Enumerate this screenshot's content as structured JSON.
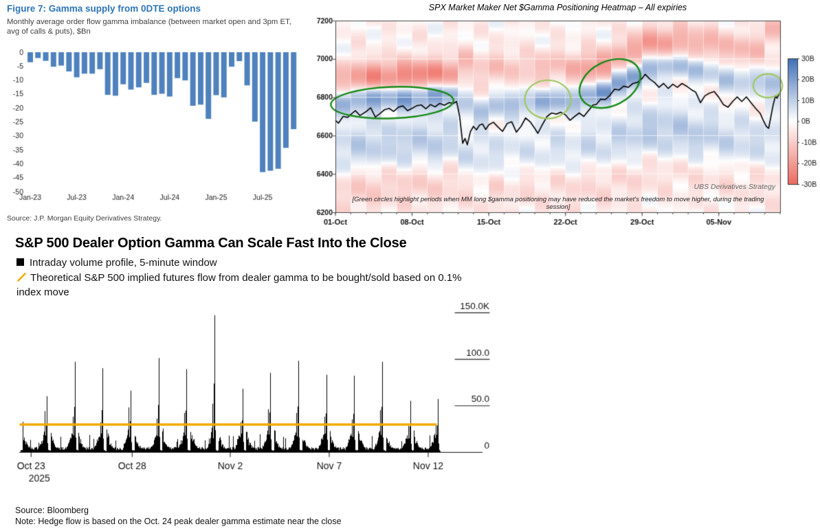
{
  "chart_data": [
    {
      "id": "figure7-gamma-bars",
      "type": "bar",
      "title": "Figure 7: Gamma supply from 0DTE options",
      "subtitle": "Monthly average order flow gamma imbalance (between market open and 3pm ET, avg of calls & puts), $Bn",
      "source": "Source: J.P. Morgan Equity Derivatives Strategy.",
      "title_color": "#2e75b6",
      "bar_color": "#4e81bd",
      "ylim": [
        -50,
        0
      ],
      "y_ticks": [
        0,
        -5,
        -10,
        -15,
        -20,
        -25,
        -30,
        -35,
        -40,
        -45,
        -50
      ],
      "x_tick_labels": [
        "Jan-23",
        "Jul-23",
        "Jan-24",
        "Jul-24",
        "Jan-25",
        "Jul-25"
      ],
      "x_tick_indices": [
        0,
        6,
        12,
        18,
        24,
        30
      ],
      "categories": [
        "Jan-23",
        "Feb-23",
        "Mar-23",
        "Apr-23",
        "May-23",
        "Jun-23",
        "Jul-23",
        "Aug-23",
        "Sep-23",
        "Oct-23",
        "Nov-23",
        "Dec-23",
        "Jan-24",
        "Feb-24",
        "Mar-24",
        "Apr-24",
        "May-24",
        "Jun-24",
        "Jul-24",
        "Aug-24",
        "Sep-24",
        "Oct-24",
        "Nov-24",
        "Dec-24",
        "Jan-25",
        "Feb-25",
        "Mar-25",
        "Apr-25",
        "May-25",
        "Jun-25",
        "Jul-25",
        "Aug-25",
        "Sep-25",
        "Oct-25",
        "Nov-25"
      ],
      "values": [
        -3.6,
        -2.1,
        -3.1,
        -5.2,
        -4.8,
        -6.9,
        -9.0,
        -7.7,
        -7.7,
        -6.1,
        -15.3,
        -15.6,
        -11.5,
        -13.4,
        -12.6,
        -11.0,
        -15.3,
        -14.9,
        -15.9,
        -9.3,
        -10.1,
        -19.2,
        -18.8,
        -23.9,
        -15.4,
        -16.2,
        -5.2,
        -3.2,
        -11.9,
        -24.9,
        -43.0,
        -42.5,
        -41.8,
        -34.3,
        -27.6
      ]
    },
    {
      "id": "spx-mm-gamma-heatmap",
      "type": "heatmap",
      "title": "SPX Market Maker Net $Gamma Positioning Heatmap – All expiries",
      "watermark": "UBS Derivatives Strategy",
      "note": "[Green circles highlight periods when MM long $gamma positioning may have reduced the market's freedom to move higher, during the trading session]",
      "ylim": [
        6200,
        7200
      ],
      "y_ticks": [
        7200,
        7000,
        6800,
        6600,
        6400,
        6200
      ],
      "x_tick_labels": [
        "01-Oct",
        "08-Oct",
        "15-Oct",
        "22-Oct",
        "29-Oct",
        "05-Nov"
      ],
      "x_tick_days": [
        0,
        5,
        10,
        15,
        20,
        25
      ],
      "n_days": 29,
      "colorbar": {
        "ticks": [
          "30B",
          "20B",
          "10B",
          "0B",
          "-10B",
          "-20B",
          "-30B"
        ],
        "vmax": 30,
        "vmin": -30,
        "max_color": "#3f6fb7",
        "min_color": "#ee6a60"
      },
      "price_line": [
        [
          0,
          6680
        ],
        [
          0.2,
          6665
        ],
        [
          0.5,
          6700
        ],
        [
          0.8,
          6695
        ],
        [
          1,
          6710
        ],
        [
          1.3,
          6730
        ],
        [
          1.6,
          6705
        ],
        [
          2,
          6725
        ],
        [
          2.3,
          6745
        ],
        [
          2.6,
          6697
        ],
        [
          2.9,
          6715
        ],
        [
          3.2,
          6735
        ],
        [
          3.5,
          6742
        ],
        [
          3.8,
          6726
        ],
        [
          4.1,
          6748
        ],
        [
          4.4,
          6755
        ],
        [
          4.7,
          6730
        ],
        [
          5,
          6742
        ],
        [
          5.3,
          6756
        ],
        [
          5.6,
          6760
        ],
        [
          5.9,
          6740
        ],
        [
          6.2,
          6762
        ],
        [
          6.5,
          6750
        ],
        [
          6.8,
          6768
        ],
        [
          7.1,
          6758
        ],
        [
          7.4,
          6772
        ],
        [
          7.7,
          6768
        ],
        [
          7.9,
          6778
        ],
        [
          8.1,
          6700
        ],
        [
          8.3,
          6560
        ],
        [
          8.45,
          6585
        ],
        [
          8.6,
          6552
        ],
        [
          8.8,
          6620
        ],
        [
          9,
          6648
        ],
        [
          9.2,
          6630
        ],
        [
          9.4,
          6655
        ],
        [
          9.6,
          6660
        ],
        [
          9.8,
          6632
        ],
        [
          10,
          6656
        ],
        [
          10.3,
          6670
        ],
        [
          10.6,
          6645
        ],
        [
          10.9,
          6622
        ],
        [
          11.2,
          6663
        ],
        [
          11.5,
          6672
        ],
        [
          11.8,
          6618
        ],
        [
          12.1,
          6648
        ],
        [
          12.4,
          6692
        ],
        [
          12.7,
          6672
        ],
        [
          13,
          6637
        ],
        [
          13.2,
          6612
        ],
        [
          13.5,
          6658
        ],
        [
          13.8,
          6700
        ],
        [
          14.1,
          6718
        ],
        [
          14.4,
          6712
        ],
        [
          14.7,
          6722
        ],
        [
          15,
          6708
        ],
        [
          15.3,
          6680
        ],
        [
          15.6,
          6700
        ],
        [
          15.9,
          6718
        ],
        [
          16.2,
          6700
        ],
        [
          16.5,
          6730
        ],
        [
          16.8,
          6760
        ],
        [
          17,
          6762
        ],
        [
          17.3,
          6790
        ],
        [
          17.6,
          6788
        ],
        [
          17.9,
          6810
        ],
        [
          18.2,
          6842
        ],
        [
          18.5,
          6838
        ],
        [
          18.8,
          6858
        ],
        [
          19.1,
          6852
        ],
        [
          19.4,
          6872
        ],
        [
          19.7,
          6878
        ],
        [
          20,
          6898
        ],
        [
          20.2,
          6920
        ],
        [
          20.5,
          6895
        ],
        [
          20.8,
          6878
        ],
        [
          21.1,
          6852
        ],
        [
          21.4,
          6872
        ],
        [
          21.7,
          6846
        ],
        [
          22,
          6868
        ],
        [
          22.3,
          6852
        ],
        [
          22.6,
          6872
        ],
        [
          22.9,
          6858
        ],
        [
          23.2,
          6840
        ],
        [
          23.5,
          6826
        ],
        [
          23.8,
          6772
        ],
        [
          24.1,
          6808
        ],
        [
          24.4,
          6822
        ],
        [
          24.7,
          6830
        ],
        [
          25,
          6800
        ],
        [
          25.3,
          6762
        ],
        [
          25.6,
          6748
        ],
        [
          25.9,
          6778
        ],
        [
          26.2,
          6802
        ],
        [
          26.5,
          6778
        ],
        [
          26.8,
          6802
        ],
        [
          27.1,
          6772
        ],
        [
          27.4,
          6742
        ],
        [
          27.7,
          6716
        ],
        [
          27.9,
          6680
        ],
        [
          28.1,
          6648
        ],
        [
          28.25,
          6638
        ],
        [
          28.4,
          6700
        ],
        [
          28.55,
          6762
        ],
        [
          28.7,
          6808
        ],
        [
          28.8,
          6795
        ],
        [
          28.95,
          6820
        ],
        [
          29,
          6828
        ]
      ],
      "gamma_columns": [
        [
          6775,
          14,
          6900,
          10,
          6520,
          8,
          6330,
          6
        ],
        [
          6790,
          18,
          6900,
          18,
          6530,
          9,
          6340,
          7
        ],
        [
          6795,
          21,
          6905,
          21,
          6540,
          10,
          6350,
          8
        ],
        [
          6800,
          17,
          6910,
          19,
          6545,
          8,
          6350,
          6
        ],
        [
          6800,
          21,
          6915,
          21,
          6550,
          10,
          6360,
          7
        ],
        [
          6805,
          19,
          6915,
          23,
          6550,
          9,
          6360,
          7
        ],
        [
          6810,
          21,
          6920,
          21,
          6555,
          10,
          6365,
          6
        ],
        [
          6815,
          17,
          6925,
          17,
          6560,
          8,
          6370,
          6
        ],
        [
          6750,
          9,
          6980,
          9,
          6500,
          6,
          6340,
          4
        ],
        [
          6720,
          11,
          6950,
          7,
          6480,
          7,
          6330,
          4
        ],
        [
          6760,
          11,
          6950,
          9,
          6500,
          6,
          6340,
          5
        ],
        [
          6770,
          13,
          6960,
          7,
          6510,
          6,
          6350,
          4
        ],
        [
          6760,
          11,
          6950,
          7,
          6500,
          5,
          6340,
          4
        ],
        [
          6780,
          15,
          6960,
          9,
          6520,
          6,
          6350,
          4
        ],
        [
          6785,
          15,
          6960,
          9,
          6530,
          6,
          6360,
          4
        ],
        [
          6790,
          13,
          6950,
          11,
          6520,
          6,
          6350,
          5
        ],
        [
          6800,
          17,
          6955,
          16,
          6530,
          7,
          6360,
          5
        ],
        [
          6830,
          21,
          6970,
          17,
          6550,
          7,
          6370,
          5
        ],
        [
          6870,
          21,
          7000,
          13,
          6570,
          8,
          6380,
          5
        ],
        [
          6910,
          19,
          7060,
          15,
          6600,
          9,
          6400,
          5
        ],
        [
          6950,
          15,
          7080,
          17,
          6620,
          10,
          6420,
          4
        ],
        [
          6960,
          13,
          7090,
          15,
          6620,
          10,
          6430,
          4
        ],
        [
          6960,
          11,
          7100,
          13,
          6610,
          10,
          6430,
          4
        ],
        [
          6950,
          13,
          7090,
          11,
          6600,
          10,
          6420,
          4
        ],
        [
          6930,
          9,
          7080,
          13,
          6580,
          9,
          6410,
          4
        ],
        [
          6900,
          11,
          7060,
          9,
          6570,
          8,
          6400,
          4
        ],
        [
          6890,
          11,
          7050,
          11,
          6560,
          8,
          6390,
          4
        ],
        [
          6880,
          9,
          7040,
          9,
          6550,
          7,
          6390,
          4
        ],
        [
          6870,
          15,
          7150,
          11,
          6560,
          7,
          6390,
          4
        ]
      ],
      "annotations": [
        {
          "shape": "ellipse",
          "cx": 3.7,
          "cy": 6772,
          "rx": 4.0,
          "ry": 82,
          "rot": -2,
          "color": "#188a18",
          "width": 2.4
        },
        {
          "shape": "ellipse",
          "cx": 13.85,
          "cy": 6789,
          "rx": 1.5,
          "ry": 100,
          "rot": 0,
          "color": "#9ec85f",
          "width": 2.2
        },
        {
          "shape": "ellipse",
          "cx": 17.9,
          "cy": 6872,
          "rx": 2.1,
          "ry": 115,
          "rot": -27,
          "color": "#188a18",
          "width": 2.4
        },
        {
          "shape": "ellipse",
          "cx": 28.2,
          "cy": 6860,
          "rx": 0.95,
          "ry": 62,
          "rot": 0,
          "color": "#9ec85f",
          "width": 2.2
        }
      ]
    },
    {
      "id": "dealer-gamma-volume-profile",
      "type": "bar",
      "title": "S&P 500 Dealer Option Gamma Can Scale Fast Into the Close",
      "legend": [
        {
          "marker": "black-square",
          "label": "Intraday volume profile, 5-minute window"
        },
        {
          "marker": "yellow-slash",
          "label": "Theoretical S&P 500 implied futures flow from dealer gamma to be bought/sold based on 0.1% index move"
        }
      ],
      "source": "Source: Bloomberg",
      "note": "Note: Hedge flow is based on the Oct. 24 peak dealer gamma estimate near the close",
      "profile_color": "#000000",
      "hedge_line_color": "#f2a900",
      "hedge_flow_level_k": 29.5,
      "y_ticks": [
        {
          "label": "150.0K",
          "value": 150
        },
        {
          "label": "100.0",
          "value": 100
        },
        {
          "label": "50.0",
          "value": 50
        },
        {
          "label": "0",
          "value": 0
        }
      ],
      "x_ticks": [
        {
          "label": "Oct 23",
          "pos": 0.025
        },
        {
          "label": "Oct 28",
          "pos": 0.266
        },
        {
          "label": "Nov 2",
          "pos": 0.5
        },
        {
          "label": "Nov 7",
          "pos": 0.736
        },
        {
          "label": "Nov 12",
          "pos": 0.972
        }
      ],
      "year_label": "2025",
      "days": [
        {
          "date": "Oct 23",
          "close_peak_k": 60,
          "pre_spike_k": 44,
          "open_burst_k": 26
        },
        {
          "date": "Oct 24",
          "close_peak_k": 97,
          "pre_spike_k": 38,
          "open_burst_k": 22
        },
        {
          "date": "Oct 27",
          "close_peak_k": 90,
          "pre_spike_k": 32,
          "open_burst_k": 20
        },
        {
          "date": "Oct 28",
          "close_peak_k": 66,
          "pre_spike_k": 48,
          "open_burst_k": 25
        },
        {
          "date": "Oct 29",
          "close_peak_k": 101,
          "pre_spike_k": 36,
          "open_burst_k": 22
        },
        {
          "date": "Oct 30",
          "close_peak_k": 89,
          "pre_spike_k": 42,
          "open_burst_k": 24
        },
        {
          "date": "Oct 31",
          "close_peak_k": 147,
          "pre_spike_k": 52,
          "open_burst_k": 30
        },
        {
          "date": "Nov 3",
          "close_peak_k": 68,
          "pre_spike_k": 32,
          "open_burst_k": 18
        },
        {
          "date": "Nov 4",
          "close_peak_k": 85,
          "pre_spike_k": 46,
          "open_burst_k": 25
        },
        {
          "date": "Nov 5",
          "close_peak_k": 98,
          "pre_spike_k": 42,
          "open_burst_k": 22
        },
        {
          "date": "Nov 6",
          "close_peak_k": 83,
          "pre_spike_k": 38,
          "open_burst_k": 20
        },
        {
          "date": "Nov 7",
          "close_peak_k": 82,
          "pre_spike_k": 35,
          "open_burst_k": 22
        },
        {
          "date": "Nov 10",
          "close_peak_k": 97,
          "pre_spike_k": 45,
          "open_burst_k": 24
        },
        {
          "date": "Nov 11",
          "close_peak_k": 55,
          "pre_spike_k": 28,
          "open_burst_k": 18
        },
        {
          "date": "Nov 12",
          "close_peak_k": 57,
          "pre_spike_k": 30,
          "open_burst_k": 20
        }
      ]
    }
  ]
}
